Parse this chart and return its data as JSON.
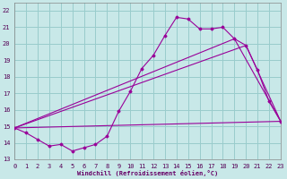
{
  "xlabel": "Windchill (Refroidissement éolien,°C)",
  "bg_color": "#c8e8e8",
  "grid_color": "#99cccc",
  "line_color": "#990099",
  "ylim": [
    13,
    22.5
  ],
  "xlim": [
    0,
    23
  ],
  "yticks": [
    13,
    14,
    15,
    16,
    17,
    18,
    19,
    20,
    21,
    22
  ],
  "xticks": [
    0,
    1,
    2,
    3,
    4,
    5,
    6,
    7,
    8,
    9,
    10,
    11,
    12,
    13,
    14,
    15,
    16,
    17,
    18,
    19,
    20,
    21,
    22,
    23
  ],
  "line1_x": [
    0,
    1,
    2,
    3,
    4,
    5,
    6,
    7,
    8,
    9,
    10,
    11,
    12,
    13,
    14,
    15,
    16,
    17,
    18,
    19,
    20,
    21,
    22,
    23
  ],
  "line1_y": [
    14.9,
    14.6,
    14.2,
    13.8,
    13.9,
    13.5,
    13.7,
    13.9,
    14.4,
    15.9,
    17.1,
    18.5,
    19.3,
    20.5,
    21.6,
    21.5,
    20.9,
    20.9,
    21.0,
    20.3,
    19.9,
    18.4,
    16.5,
    15.3
  ],
  "line2_x": [
    0,
    20,
    23
  ],
  "line2_y": [
    14.9,
    19.9,
    15.3
  ],
  "line3_x": [
    0,
    19,
    23
  ],
  "line3_y": [
    14.9,
    20.3,
    15.3
  ]
}
